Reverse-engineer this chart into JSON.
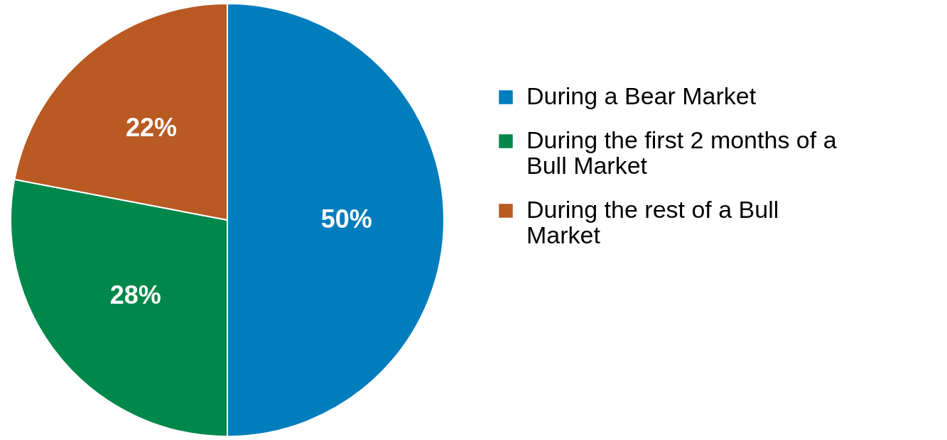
{
  "chart_data": {
    "type": "pie",
    "categories": [
      "During a Bear Market",
      "During the first 2 months of a Bull Market",
      "During the rest of a Bull Market"
    ],
    "values": [
      50,
      28,
      22
    ],
    "colors": [
      "#007dbd",
      "#00874a",
      "#b85a22"
    ],
    "value_labels": [
      "50%",
      "28%",
      "22%"
    ],
    "legend": "right"
  }
}
